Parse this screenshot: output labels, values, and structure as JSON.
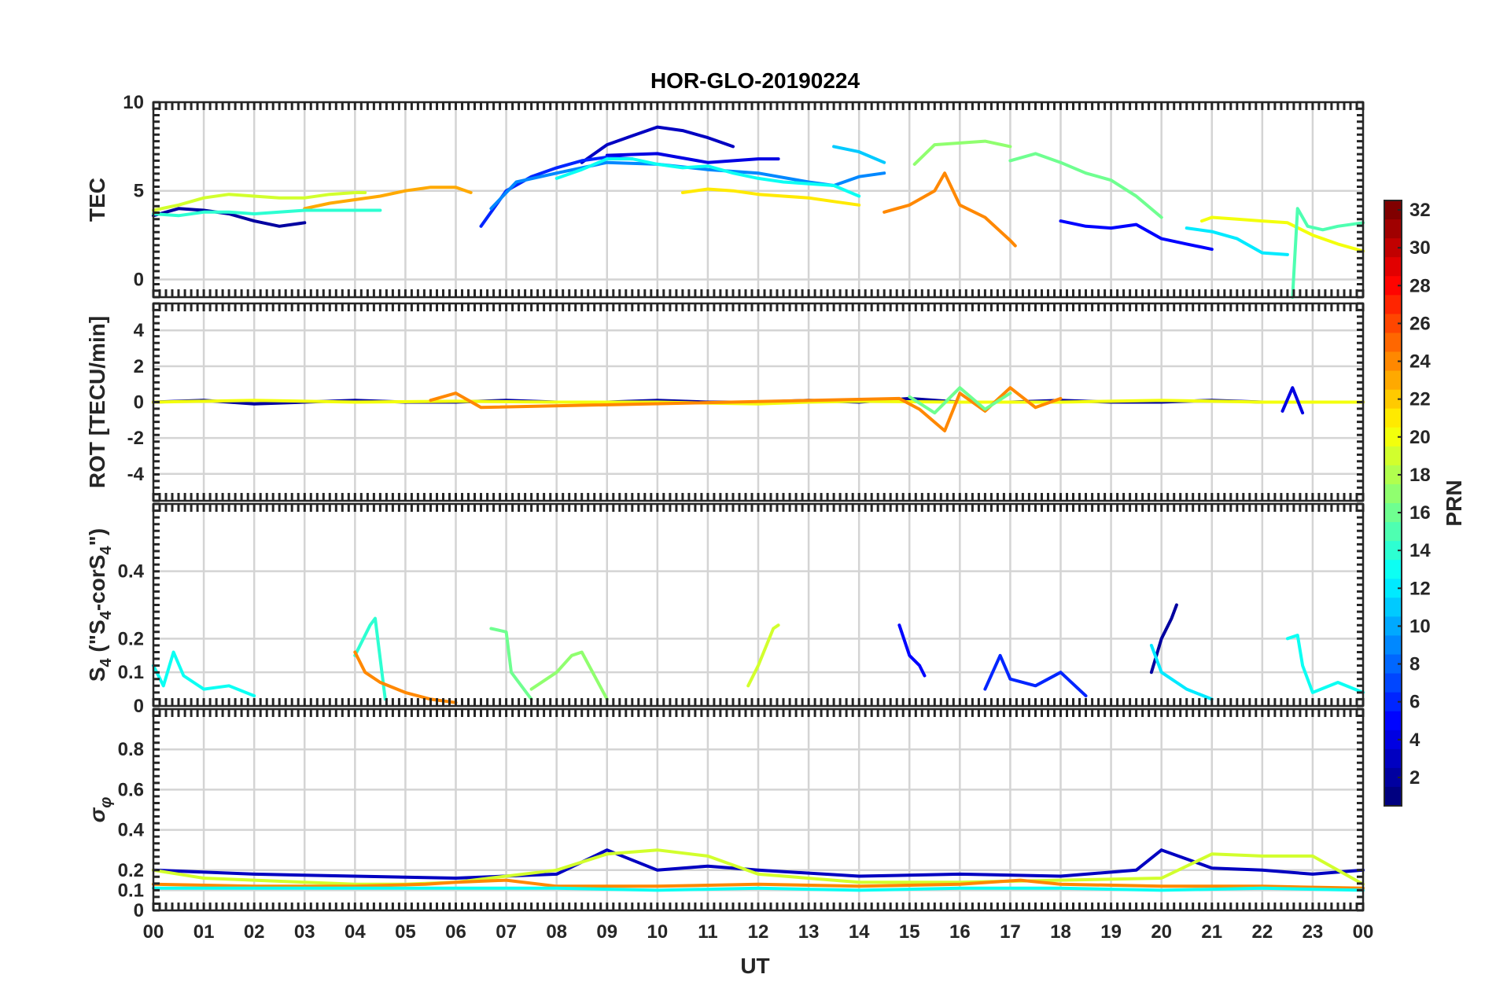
{
  "chart_data": {
    "type": "line",
    "title": "HOR-GLO-20190224",
    "xlabel": "UT",
    "x_ticks": [
      "00",
      "01",
      "02",
      "03",
      "04",
      "05",
      "06",
      "07",
      "08",
      "09",
      "10",
      "11",
      "12",
      "13",
      "14",
      "15",
      "16",
      "17",
      "18",
      "19",
      "20",
      "21",
      "22",
      "23",
      "00"
    ],
    "xlim": [
      0,
      24
    ],
    "grid": true,
    "panels": [
      {
        "id": "tec",
        "ylabel": "TEC",
        "ylim": [
          -1,
          10
        ],
        "y_ticks": [
          0,
          5,
          10
        ],
        "series": [
          {
            "name": "PRN 2",
            "prn": 2,
            "x": [
              0,
              0.5,
              1,
              1.5,
              2,
              2.5,
              3
            ],
            "y": [
              3.6,
              4.0,
              3.9,
              3.7,
              3.3,
              3.0,
              3.2
            ]
          },
          {
            "name": "PRN 3",
            "prn": 3,
            "x": [
              8.5,
              9,
              9.5,
              10,
              10.5,
              11,
              11.5
            ],
            "y": [
              6.6,
              7.6,
              8.1,
              8.6,
              8.4,
              8.0,
              7.5
            ]
          },
          {
            "name": "PRN 4",
            "prn": 4,
            "x": [
              9,
              10,
              11,
              12,
              12.4
            ],
            "y": [
              7.0,
              7.1,
              6.6,
              6.8,
              6.8
            ]
          },
          {
            "name": "PRN 6",
            "prn": 6,
            "x": [
              6.5,
              7,
              7.5,
              8,
              8.5,
              9,
              9.5
            ],
            "y": [
              3.0,
              5.0,
              5.8,
              6.3,
              6.7,
              6.9,
              6.8
            ]
          },
          {
            "name": "PRN 9",
            "prn": 9,
            "x": [
              6.7,
              7.2,
              8,
              9,
              10,
              11,
              12,
              13,
              13.5,
              14,
              14.5
            ],
            "y": [
              4.0,
              5.5,
              6.0,
              6.6,
              6.5,
              6.2,
              6.0,
              5.5,
              5.3,
              5.8,
              6.0
            ]
          },
          {
            "name": "PRN 11",
            "prn": 11,
            "x": [
              13.5,
              14,
              14.5
            ],
            "y": [
              7.5,
              7.2,
              6.6
            ]
          },
          {
            "name": "PRN 17",
            "prn": 17,
            "x": [
              15.1,
              15.5,
              16,
              16.5,
              17
            ],
            "y": [
              6.5,
              7.6,
              7.7,
              7.8,
              7.5
            ]
          },
          {
            "name": "PRN 16",
            "prn": 16,
            "x": [
              17,
              17.5,
              18,
              18.5,
              19,
              19.5,
              20
            ],
            "y": [
              6.7,
              7.1,
              6.6,
              6.0,
              5.6,
              4.7,
              3.5
            ]
          },
          {
            "name": "PRN 5",
            "prn": 5,
            "x": [
              18,
              18.5,
              19,
              19.5,
              20,
              20.5,
              21
            ],
            "y": [
              3.3,
              3.0,
              2.9,
              3.1,
              2.3,
              2.0,
              1.7
            ]
          },
          {
            "name": "PRN 12",
            "prn": 12,
            "x": [
              20.5,
              21,
              21.5,
              22,
              22.5
            ],
            "y": [
              2.9,
              2.7,
              2.3,
              1.5,
              1.4
            ]
          },
          {
            "name": "PRN 20",
            "prn": 20,
            "x": [
              20.8,
              21,
              21.5,
              22,
              22.5,
              23,
              23.5,
              24
            ],
            "y": [
              3.3,
              3.5,
              3.4,
              3.3,
              3.2,
              2.5,
              2.0,
              1.6
            ]
          },
          {
            "name": "PRN 23",
            "prn": 23,
            "x": [
              3,
              3.5,
              4,
              4.5,
              5,
              5.5,
              6,
              6.3
            ],
            "y": [
              4.0,
              4.3,
              4.5,
              4.7,
              5.0,
              5.2,
              5.2,
              4.9
            ]
          },
          {
            "name": "PRN 19",
            "prn": 19,
            "x": [
              0,
              0.5,
              1,
              1.5,
              2,
              2.5,
              3,
              3.5,
              4,
              4.2
            ],
            "y": [
              3.9,
              4.2,
              4.6,
              4.8,
              4.7,
              4.6,
              4.6,
              4.8,
              4.9,
              4.9
            ]
          },
          {
            "name": "PRN 21",
            "prn": 21,
            "x": [
              10.5,
              11,
              11.5,
              12,
              12.5,
              13,
              13.5,
              14
            ],
            "y": [
              4.9,
              5.1,
              5.0,
              4.8,
              4.7,
              4.6,
              4.4,
              4.2
            ]
          },
          {
            "name": "PRN 24",
            "prn": 24,
            "x": [
              14.5,
              15,
              15.5,
              15.7,
              16,
              16.5,
              17,
              17.1
            ],
            "y": [
              3.8,
              4.2,
              5.0,
              6.0,
              4.2,
              3.5,
              2.2,
              1.9
            ]
          },
          {
            "name": "PRN 14",
            "prn": 14,
            "x": [
              0,
              0.5,
              1,
              1.5,
              2,
              2.5,
              3,
              3.5,
              4,
              4.5
            ],
            "y": [
              3.7,
              3.6,
              3.8,
              3.8,
              3.7,
              3.8,
              3.9,
              3.9,
              3.9,
              3.9
            ]
          },
          {
            "name": "PRN 13",
            "prn": 13,
            "x": [
              8,
              8.5,
              9,
              9.5,
              10,
              10.5,
              11,
              11.5,
              12,
              12.5,
              13,
              13.5,
              14
            ],
            "y": [
              5.7,
              6.2,
              6.8,
              6.8,
              6.5,
              6.3,
              6.4,
              6.0,
              5.7,
              5.5,
              5.4,
              5.3,
              4.7
            ]
          },
          {
            "name": "PRN 15",
            "prn": 15,
            "x": [
              22.6,
              22.7,
              22.9,
              23.2,
              23.5,
              24
            ],
            "y": [
              -1.0,
              4.0,
              3.0,
              2.8,
              3.0,
              3.2
            ]
          }
        ]
      },
      {
        "id": "rot",
        "ylabel": "ROT [TECU/min]",
        "ylim": [
          -5.5,
          5.5
        ],
        "y_ticks": [
          -4,
          -2,
          0,
          2,
          4
        ],
        "series": [
          {
            "name": "PRN 2",
            "prn": 2,
            "x": [
              0,
              1,
              2,
              3,
              4,
              5,
              6,
              7,
              8,
              9,
              10,
              11,
              12,
              13,
              14,
              15,
              16,
              17,
              18,
              19,
              20,
              21,
              22,
              23,
              24
            ],
            "y": [
              0,
              0.1,
              -0.1,
              0,
              0.1,
              0,
              0,
              0.1,
              0,
              0,
              0.1,
              0,
              0,
              0.1,
              0,
              0.2,
              0,
              0,
              0.1,
              0,
              0,
              0.1,
              0,
              0,
              0
            ]
          },
          {
            "name": "PRN 20",
            "prn": 20,
            "x": [
              0,
              2,
              4,
              6,
              8,
              10,
              12,
              13,
              14,
              16,
              18,
              20,
              22,
              24
            ],
            "y": [
              0,
              0.1,
              0,
              0.05,
              0,
              0,
              -0.1,
              0,
              0.05,
              0,
              0,
              0.1,
              0,
              0
            ]
          },
          {
            "name": "PRN 24",
            "prn": 24,
            "x": [
              5.5,
              6,
              6.5,
              14.8,
              15.2,
              15.7,
              16,
              16.5,
              17,
              17.5,
              18
            ],
            "y": [
              0.1,
              0.5,
              -0.3,
              0.2,
              -0.4,
              -1.6,
              0.5,
              -0.5,
              0.8,
              -0.3,
              0.2
            ]
          },
          {
            "name": "PRN 16",
            "prn": 16,
            "x": [
              15,
              15.5,
              16,
              16.5,
              17
            ],
            "y": [
              0.3,
              -0.6,
              0.8,
              -0.4,
              0.5
            ]
          },
          {
            "name": "PRN 4",
            "prn": 4,
            "x": [
              22.4,
              22.6,
              22.8
            ],
            "y": [
              -0.5,
              0.8,
              -0.6
            ]
          }
        ]
      },
      {
        "id": "s4",
        "ylabel": "S4 (\"S4-corS4\")",
        "ylabel_main": "S",
        "ylabel_sub1": "4",
        "ylabel_mid": " (\"S",
        "ylabel_sub2": "4",
        "ylabel_mid2": "-corS",
        "ylabel_sub3": "4",
        "ylabel_end": "\")",
        "ylim": [
          0,
          0.6
        ],
        "y_ticks": [
          0,
          0.1,
          0.2,
          0.4
        ],
        "series": [
          {
            "name": "PRN 13",
            "prn": 13,
            "x": [
              0,
              0.2,
              0.4,
              0.6,
              1.0,
              1.5,
              2.0
            ],
            "y": [
              0.12,
              0.06,
              0.16,
              0.09,
              0.05,
              0.06,
              0.03
            ]
          },
          {
            "name": "PRN 14",
            "prn": 14,
            "x": [
              4.0,
              4.3,
              4.4,
              4.6
            ],
            "y": [
              0.15,
              0.24,
              0.26,
              0.02
            ]
          },
          {
            "name": "PRN 16",
            "prn": 16,
            "x": [
              6.7,
              7.0,
              7.1,
              7.3,
              7.5
            ],
            "y": [
              0.23,
              0.22,
              0.1,
              0.06,
              0.02
            ]
          },
          {
            "name": "PRN 24",
            "prn": 24,
            "x": [
              4.0,
              4.2,
              4.5,
              5.0,
              5.5,
              6.0
            ],
            "y": [
              0.16,
              0.1,
              0.07,
              0.04,
              0.02,
              0.01
            ]
          },
          {
            "name": "PRN 17",
            "prn": 17,
            "x": [
              7.5,
              8.0,
              8.3,
              8.5,
              9.0
            ],
            "y": [
              0.05,
              0.1,
              0.15,
              0.16,
              0.02
            ]
          },
          {
            "name": "PRN 19",
            "prn": 19,
            "x": [
              11.8,
              12.0,
              12.3,
              12.4
            ],
            "y": [
              0.06,
              0.12,
              0.23,
              0.24
            ]
          },
          {
            "name": "PRN 5",
            "prn": 5,
            "x": [
              14.8,
              15.0,
              15.2,
              15.3
            ],
            "y": [
              0.24,
              0.15,
              0.12,
              0.09
            ]
          },
          {
            "name": "PRN 6",
            "prn": 6,
            "x": [
              16.5,
              16.8,
              17.0,
              17.5,
              18.0,
              18.5
            ],
            "y": [
              0.05,
              0.15,
              0.08,
              0.06,
              0.1,
              0.03
            ]
          },
          {
            "name": "PRN 2",
            "prn": 2,
            "x": [
              19.8,
              20.0,
              20.2,
              20.3
            ],
            "y": [
              0.1,
              0.2,
              0.26,
              0.3
            ]
          },
          {
            "name": "PRN 12",
            "prn": 12,
            "x": [
              19.8,
              20.0,
              20.5,
              21.0
            ],
            "y": [
              0.18,
              0.1,
              0.05,
              0.02
            ]
          },
          {
            "name": "PRN 13",
            "prn": 13,
            "x": [
              22.5,
              22.7,
              22.8,
              23.0,
              23.5,
              24
            ],
            "y": [
              0.2,
              0.21,
              0.12,
              0.04,
              0.07,
              0.04
            ]
          }
        ]
      },
      {
        "id": "sigma",
        "ylabel": "σφ",
        "ylabel_main": "σ",
        "ylabel_sub": "φ",
        "ylim": [
          0,
          1
        ],
        "y_ticks": [
          0,
          0.1,
          0.2,
          0.4,
          0.6,
          0.8
        ],
        "series": [
          {
            "name": "PRN 3",
            "prn": 3,
            "x": [
              0,
              2,
              4,
              6,
              8,
              9,
              10,
              11,
              12,
              14,
              16,
              18,
              19.5,
              20,
              21,
              22,
              23,
              24
            ],
            "y": [
              0.2,
              0.18,
              0.17,
              0.16,
              0.18,
              0.3,
              0.2,
              0.22,
              0.2,
              0.17,
              0.18,
              0.17,
              0.2,
              0.3,
              0.21,
              0.2,
              0.18,
              0.2
            ]
          },
          {
            "name": "PRN 19",
            "prn": 19,
            "x": [
              0,
              1,
              2,
              3,
              4,
              5,
              6,
              8,
              9,
              10,
              11,
              12,
              14,
              16,
              18,
              20,
              21,
              22,
              23,
              24
            ],
            "y": [
              0.2,
              0.16,
              0.15,
              0.14,
              0.13,
              0.13,
              0.14,
              0.2,
              0.28,
              0.3,
              0.27,
              0.18,
              0.14,
              0.14,
              0.15,
              0.16,
              0.28,
              0.27,
              0.27,
              0.13
            ]
          },
          {
            "name": "PRN 24",
            "prn": 24,
            "x": [
              0,
              2,
              4,
              5.4,
              6,
              7,
              8,
              10,
              12,
              14,
              16,
              17.2,
              18,
              20,
              22,
              24
            ],
            "y": [
              0.13,
              0.12,
              0.12,
              0.13,
              0.14,
              0.15,
              0.12,
              0.12,
              0.13,
              0.12,
              0.13,
              0.15,
              0.13,
              0.12,
              0.12,
              0.11
            ]
          },
          {
            "name": "PRN 13",
            "prn": 13,
            "x": [
              0,
              2,
              4,
              6,
              8,
              10,
              12,
              14,
              16,
              18,
              20,
              22,
              24
            ],
            "y": [
              0.11,
              0.11,
              0.11,
              0.11,
              0.11,
              0.1,
              0.11,
              0.1,
              0.11,
              0.11,
              0.1,
              0.11,
              0.1
            ]
          }
        ]
      }
    ],
    "colorbar": {
      "label": "PRN",
      "min": 1,
      "max": 32,
      "ticks": [
        2,
        4,
        6,
        8,
        10,
        12,
        14,
        16,
        18,
        20,
        22,
        24,
        26,
        28,
        30,
        32
      ],
      "tick_labels": [
        "2",
        "4",
        "6",
        "8",
        "10",
        "12",
        "14",
        "16",
        "18",
        "20",
        "22",
        "24",
        "26",
        "28",
        "30",
        "32"
      ],
      "colormap": "jet"
    }
  }
}
